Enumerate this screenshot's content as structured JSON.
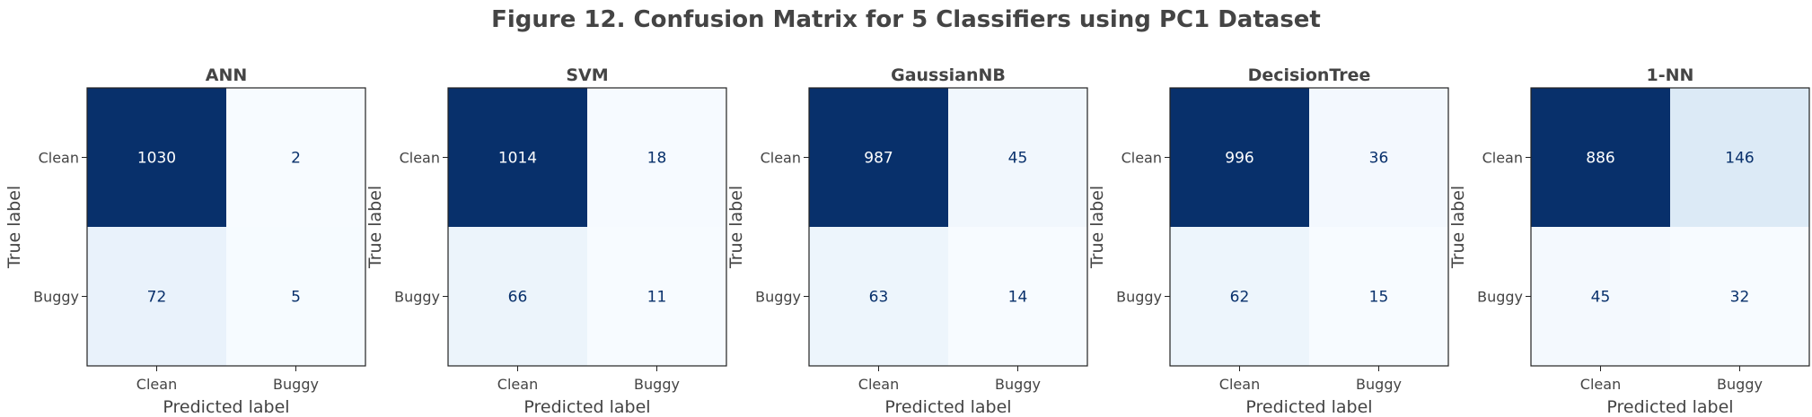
{
  "figure": {
    "suptitle": "Figure 12. Confusion Matrix for 5 Classifiers using PC1 Dataset"
  },
  "colors": {
    "text": "#444444",
    "dark_text": "#08306b",
    "light_text": "#ffffff",
    "colormap": "Blues"
  },
  "chart_data": [
    {
      "type": "heatmap",
      "title": "ANN",
      "xlabel": "Predicted label",
      "ylabel": "True label",
      "x_categories": [
        "Clean",
        "Buggy"
      ],
      "y_categories": [
        "Clean",
        "Buggy"
      ],
      "values": [
        [
          1030,
          2
        ],
        [
          72,
          5
        ]
      ]
    },
    {
      "type": "heatmap",
      "title": "SVM",
      "xlabel": "Predicted label",
      "ylabel": "True label",
      "x_categories": [
        "Clean",
        "Buggy"
      ],
      "y_categories": [
        "Clean",
        "Buggy"
      ],
      "values": [
        [
          1014,
          18
        ],
        [
          66,
          11
        ]
      ]
    },
    {
      "type": "heatmap",
      "title": "GaussianNB",
      "xlabel": "Predicted label",
      "ylabel": "True label",
      "x_categories": [
        "Clean",
        "Buggy"
      ],
      "y_categories": [
        "Clean",
        "Buggy"
      ],
      "values": [
        [
          987,
          45
        ],
        [
          63,
          14
        ]
      ]
    },
    {
      "type": "heatmap",
      "title": "DecisionTree",
      "xlabel": "Predicted label",
      "ylabel": "True label",
      "x_categories": [
        "Clean",
        "Buggy"
      ],
      "y_categories": [
        "Clean",
        "Buggy"
      ],
      "values": [
        [
          996,
          36
        ],
        [
          62,
          15
        ]
      ]
    },
    {
      "type": "heatmap",
      "title": "1-NN",
      "xlabel": "Predicted label",
      "ylabel": "True label",
      "x_categories": [
        "Clean",
        "Buggy"
      ],
      "y_categories": [
        "Clean",
        "Buggy"
      ],
      "values": [
        [
          886,
          146
        ],
        [
          45,
          32
        ]
      ]
    }
  ]
}
